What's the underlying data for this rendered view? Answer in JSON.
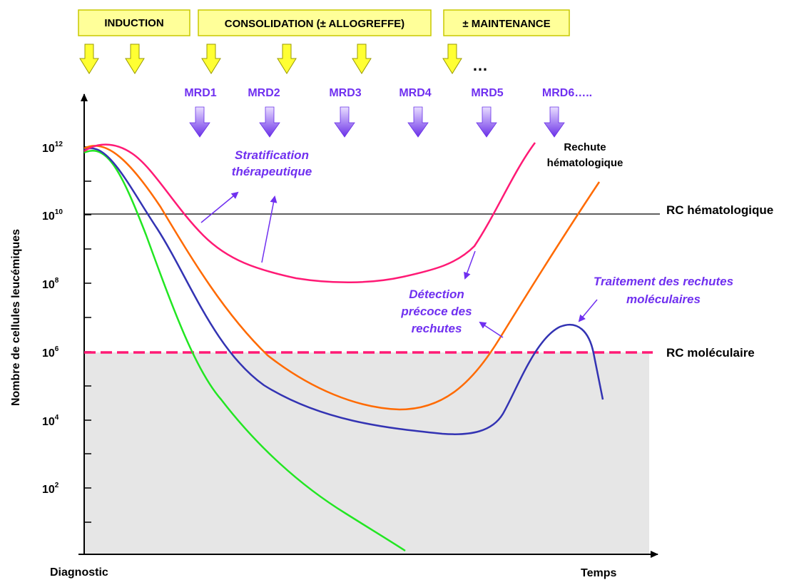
{
  "phases": {
    "induction": "INDUCTION",
    "consolidation": "CONSOLIDATION (± ALLOGREFFE)",
    "maintenance": "± MAINTENANCE",
    "ellipsis": "…"
  },
  "mrd": [
    "MRD1",
    "MRD2",
    "MRD3",
    "MRD4",
    "MRD5",
    "MRD6….."
  ],
  "y_axis": {
    "label": "Nombre de cellules leucémiques",
    "ticks": [
      {
        "base": "10",
        "exp": "12"
      },
      {
        "base": "10",
        "exp": "10"
      },
      {
        "base": "10",
        "exp": "8"
      },
      {
        "base": "10",
        "exp": "6"
      },
      {
        "base": "10",
        "exp": "4"
      },
      {
        "base": "10",
        "exp": "2"
      }
    ]
  },
  "x_axis": {
    "start_label": "Diagnostic",
    "end_label": "Temps"
  },
  "reference_lines": {
    "hematologic": "RC hématologique",
    "molecular": "RC moléculaire"
  },
  "annotations": {
    "relapse_line1": "Rechute",
    "relapse_line2": "hématologique",
    "strat_line1": "Stratification",
    "strat_line2": "thérapeutique",
    "detect_line1": "Détection",
    "detect_line2": "précoce des",
    "detect_line3": "rechutes",
    "treat_line1": "Traitement des rechutes",
    "treat_line2": "moléculaires"
  },
  "colors": {
    "phase_box": "#ffff99",
    "phase_border": "#c8c800",
    "arrow_yellow": "#ffff33",
    "mrd_purple": "#7030f0",
    "curve_magenta": "#ff1a75",
    "curve_orange": "#ff6a00",
    "curve_blue": "#3333b3",
    "curve_green": "#22e622",
    "molecular_dash": "#ff1a75",
    "shaded_zone": "#e6e6e6"
  }
}
